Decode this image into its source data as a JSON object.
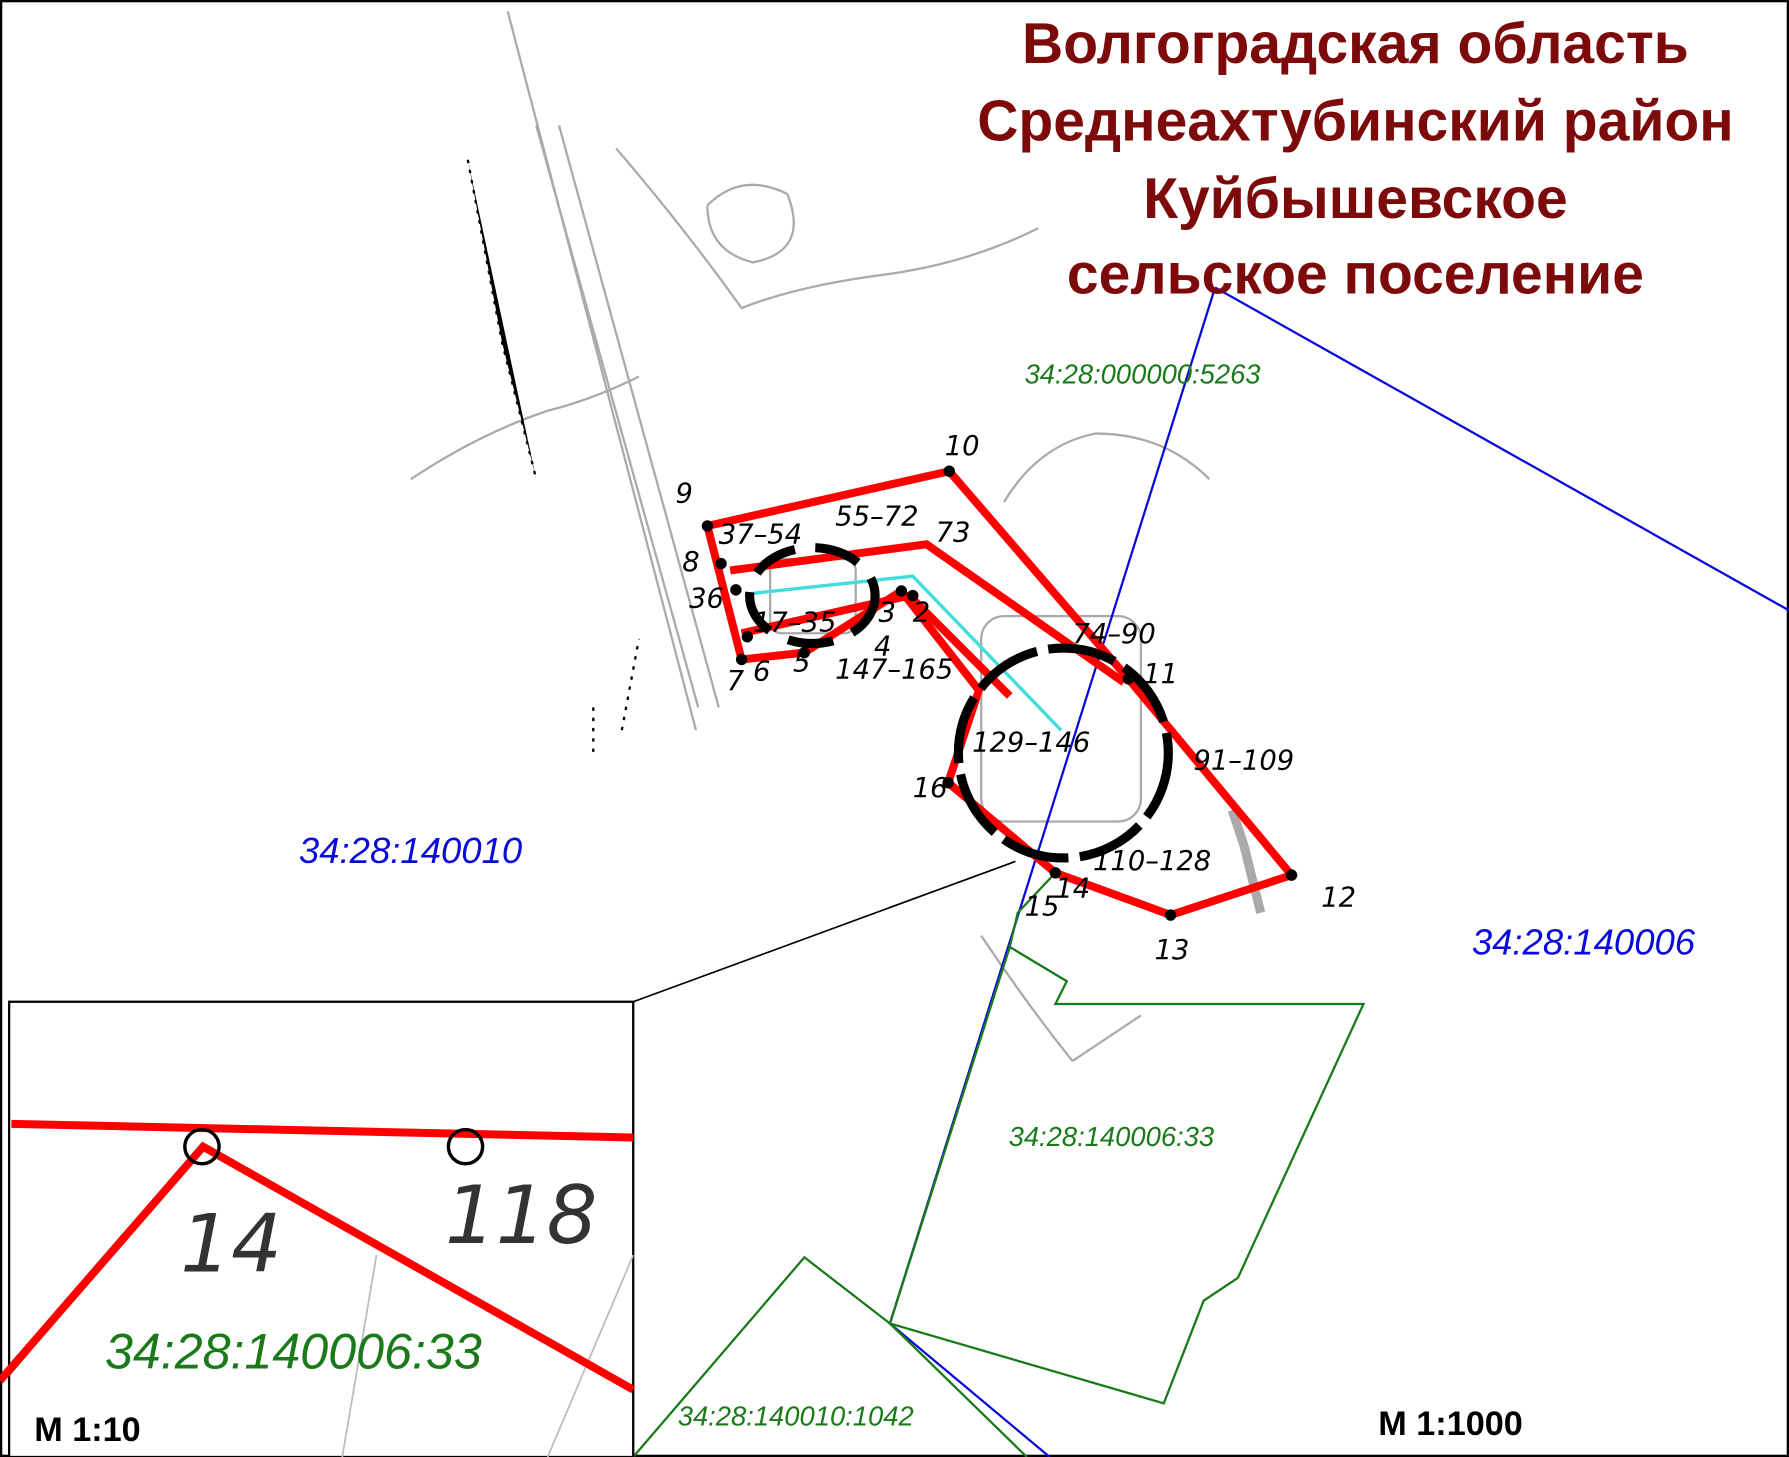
{
  "title": [
    "Волгоградская область",
    "Среднеахтубинский район",
    "Куйбышевское",
    "сельское поселение"
  ],
  "points": [
    "10",
    "9",
    "8",
    "36",
    "37–54",
    "55–72",
    "73",
    "2",
    "3",
    "4",
    "17–35",
    "7",
    "6",
    "5",
    "147–165",
    "74–90",
    "11",
    "129–146",
    "91–109",
    "16",
    "110–128",
    "14",
    "15",
    "12",
    "13"
  ],
  "parcels": {
    "blue": [
      "34:28:140010",
      "34:28:140006"
    ],
    "green": [
      "34:28:000000:5263",
      "34:28:140006:33",
      "34:28:140010:1042"
    ]
  },
  "scale": "М 1:1000",
  "inset": {
    "points": [
      "14",
      "118"
    ],
    "parcel": "34:28:140006:33",
    "scale": "М 1:10"
  }
}
